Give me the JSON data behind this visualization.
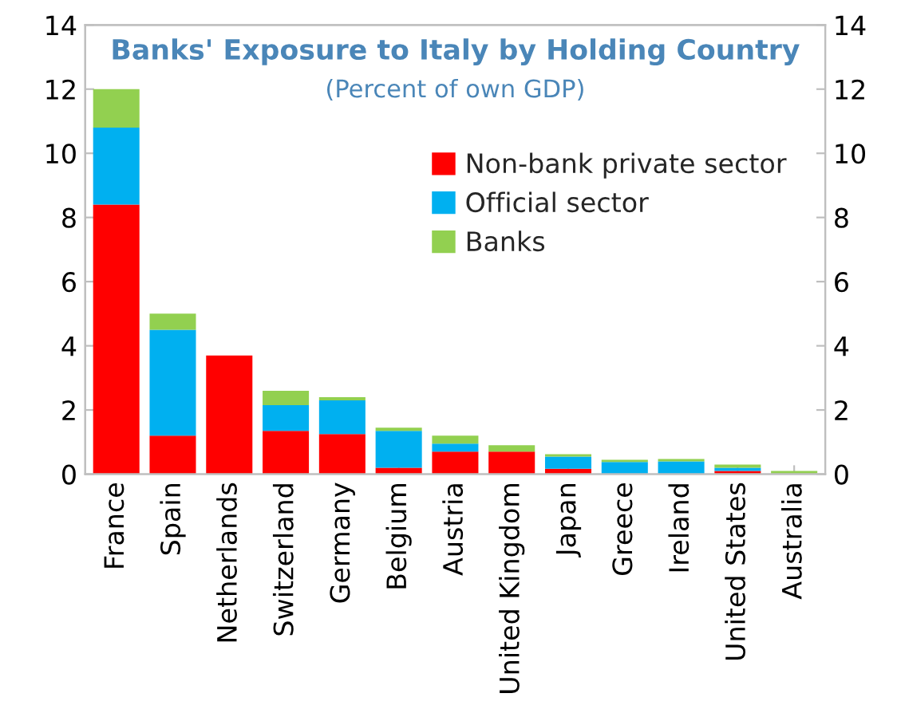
{
  "chart_data": {
    "type": "bar",
    "stacked": true,
    "title": "Banks' Exposure to Italy by Holding Country",
    "subtitle": "(Percent of own GDP)",
    "categories": [
      "France",
      "Spain",
      "Netherlands",
      "Switzerland",
      "Germany",
      "Belgium",
      "Austria",
      "United Kingdom",
      "Japan",
      "Greece",
      "Ireland",
      "United States",
      "Australia"
    ],
    "series": [
      {
        "name": "Non-bank private sector",
        "color": "#ff0000",
        "values": [
          8.4,
          1.2,
          3.7,
          1.35,
          1.25,
          0.2,
          0.7,
          0.7,
          0.17,
          0,
          0,
          0.1,
          0
        ]
      },
      {
        "name": "Official sector",
        "color": "#00b0f0",
        "values": [
          2.4,
          3.3,
          0,
          0.8,
          1.05,
          1.15,
          0.25,
          0,
          0.38,
          0.38,
          0.4,
          0.1,
          0
        ]
      },
      {
        "name": "Banks",
        "color": "#92d050",
        "values": [
          1.2,
          0.5,
          0,
          0.45,
          0.1,
          0.1,
          0.25,
          0.2,
          0.07,
          0.07,
          0.07,
          0.1,
          0.1
        ]
      }
    ],
    "ylim": [
      0,
      14
    ],
    "yticks": [
      0,
      2,
      4,
      6,
      8,
      10,
      12,
      14
    ],
    "y2lim": [
      0,
      14
    ],
    "y2ticks": [
      0,
      2,
      4,
      6,
      8,
      10,
      12,
      14
    ],
    "grid": false,
    "legend": "right"
  }
}
